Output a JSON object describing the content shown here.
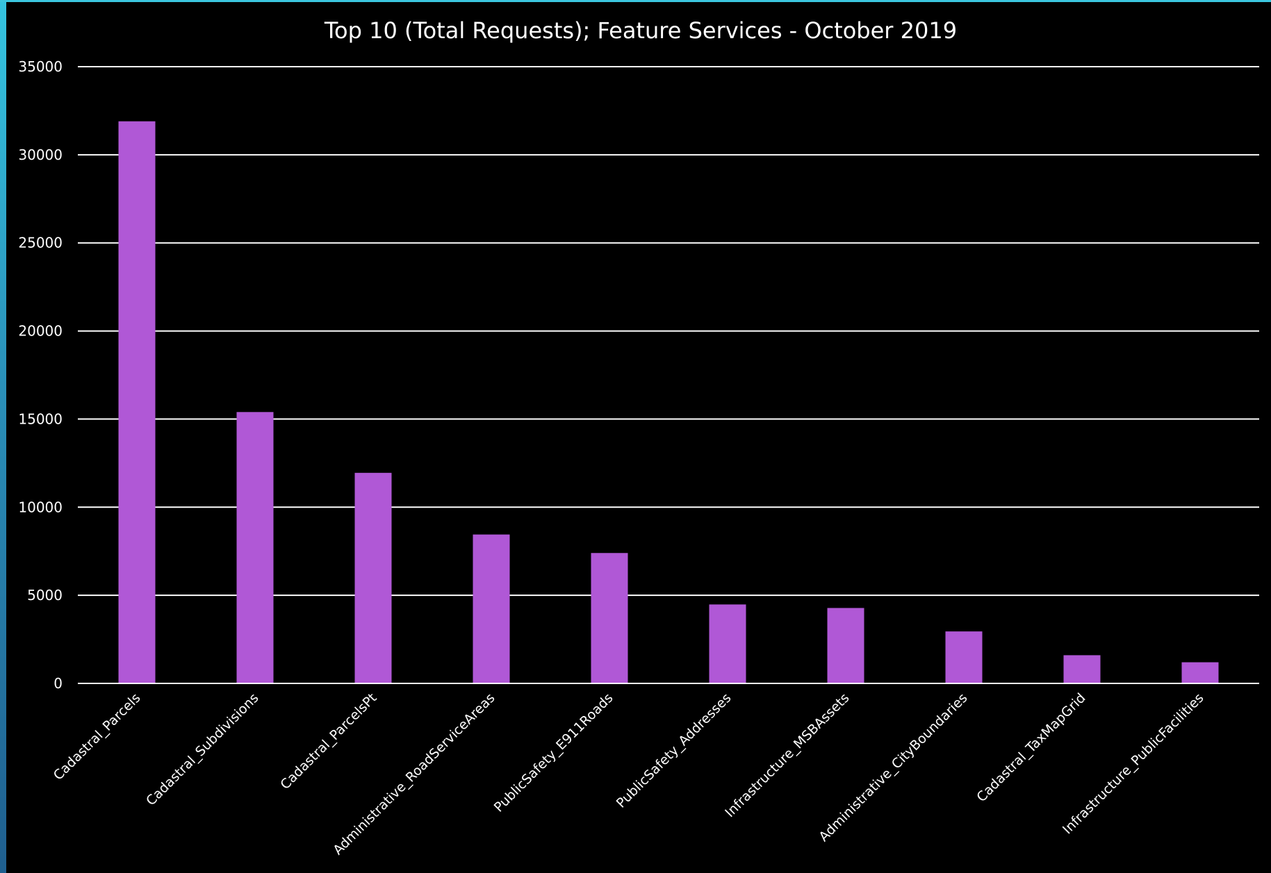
{
  "chart_data": {
    "type": "bar",
    "title": "Top 10 (Total Requests); Feature Services - October 2019",
    "xlabel": "",
    "ylabel": "",
    "categories": [
      "Cadastral_Parcels",
      "Cadastral_Subdivisions",
      "Cadastral_ParcelsPt",
      "Administrative_RoadServiceAreas",
      "PublicSafety_E911Roads",
      "PublicSafety_Addresses",
      "Infrastructure_MSBAssets",
      "Administrative_CityBoundaries",
      "Cadastral_TaxMapGrid",
      "Infrastructure_PublicFacilities"
    ],
    "values": [
      31900,
      15400,
      11950,
      8450,
      7400,
      4480,
      4280,
      2950,
      1600,
      1200
    ],
    "ylim": [
      0,
      35000
    ],
    "yticks": [
      "0",
      "5000",
      "10000",
      "15000",
      "20000",
      "25000",
      "30000",
      "35000"
    ],
    "grid": true,
    "legend": "none",
    "colors": {
      "bar": "#b058d6",
      "grid": "#ffffff",
      "background": "#000000",
      "text": "#ffffff",
      "accent": "#35c4e0"
    }
  }
}
